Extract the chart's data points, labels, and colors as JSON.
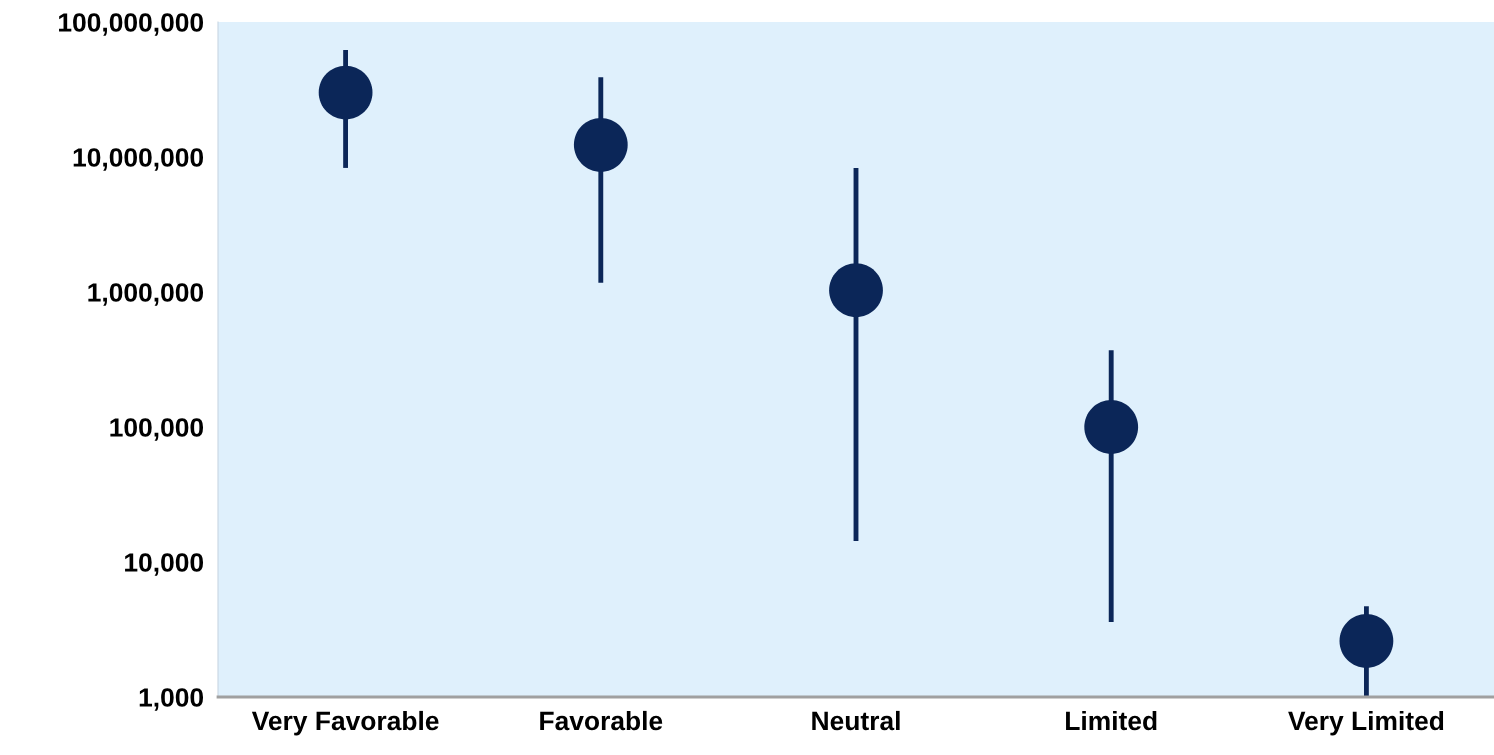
{
  "chart_data": {
    "type": "scatter",
    "categories": [
      "Very Favorable",
      "Favorable",
      "Neutral",
      "Limited",
      "Very Limited"
    ],
    "values": [
      30000000,
      12300000,
      1030000,
      100000,
      2600
    ],
    "errors": [
      [
        8300000,
        62000000
      ],
      [
        1170000,
        39000000
      ],
      [
        14300,
        8300000
      ],
      [
        3600,
        370000
      ],
      [
        1000,
        4700
      ]
    ],
    "color": "#0b2658",
    "marker": "circle",
    "log": true,
    "grid": false,
    "legend": false,
    "ylim": [
      1000,
      100000000
    ],
    "yticks": [
      {
        "value": 1000,
        "label": "1,000"
      },
      {
        "value": 10000,
        "label": "10,000"
      },
      {
        "value": 100000,
        "label": "100,000"
      },
      {
        "value": 1000000,
        "label": "1,000,000"
      },
      {
        "value": 10000000,
        "label": "10,000,000"
      },
      {
        "value": 100000000,
        "label": "100,000,000"
      }
    ]
  }
}
